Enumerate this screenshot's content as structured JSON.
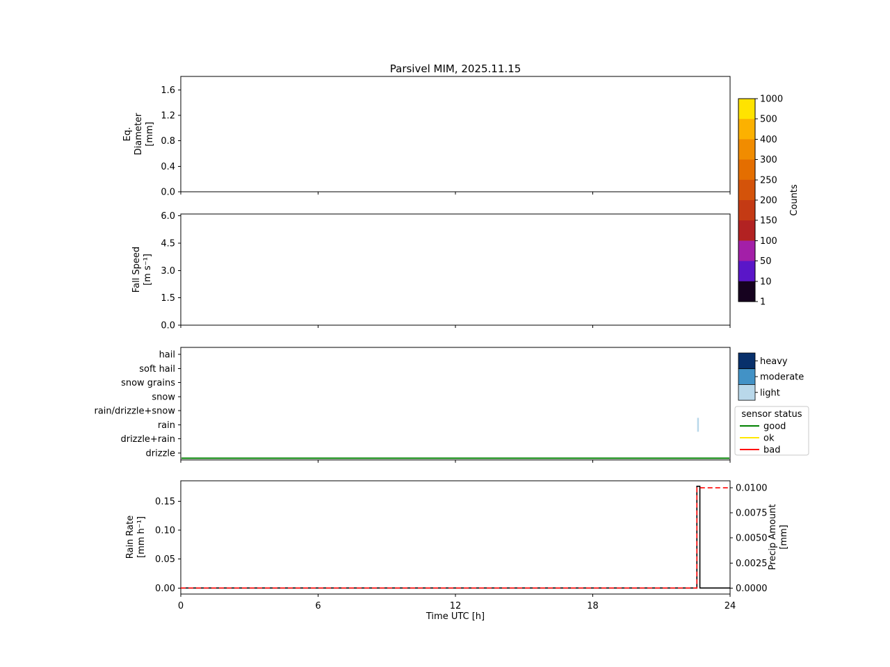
{
  "figure": {
    "title": "Parsivel MIM, 2025.11.15",
    "xlabel": "Time UTC [h]",
    "x_range": [
      0,
      24
    ],
    "x_ticks": [
      {
        "v": 0,
        "label": "0"
      },
      {
        "v": 6,
        "label": "6"
      },
      {
        "v": 12,
        "label": "12"
      },
      {
        "v": 18,
        "label": "18"
      },
      {
        "v": 24,
        "label": "24"
      }
    ]
  },
  "chart_data": [
    {
      "id": "eq_diameter",
      "type": "heatmap",
      "ylabel": "Eq.\nDiameter\n[mm]",
      "ylim": [
        0,
        1.81
      ],
      "yticks": [
        {
          "v": 0.0,
          "label": "0.0"
        },
        {
          "v": 0.4,
          "label": "0.4"
        },
        {
          "v": 0.8,
          "label": "0.8"
        },
        {
          "v": 1.2,
          "label": "1.2"
        },
        {
          "v": 1.6,
          "label": "1.6"
        }
      ],
      "values": []
    },
    {
      "id": "fall_speed",
      "type": "heatmap",
      "ylabel": "Fall Speed\n[m s⁻¹]",
      "ylim": [
        0,
        6.1
      ],
      "yticks": [
        {
          "v": 0.0,
          "label": "0.0"
        },
        {
          "v": 1.5,
          "label": "1.5"
        },
        {
          "v": 3.0,
          "label": "3.0"
        },
        {
          "v": 4.5,
          "label": "4.5"
        },
        {
          "v": 6.0,
          "label": "6.0"
        }
      ],
      "values": []
    },
    {
      "id": "precip_type",
      "type": "scatter",
      "categories": [
        "hail",
        "soft hail",
        "snow grains",
        "snow",
        "rain/drizzle+snow",
        "rain",
        "drizzle+rain",
        "drizzle"
      ],
      "events": [
        {
          "time_h": 22.6,
          "category": "rain",
          "intensity": "light"
        }
      ],
      "sensor_status_line": {
        "status": "good",
        "t0": 0,
        "t1": 24
      }
    },
    {
      "id": "rain",
      "type": "line",
      "left_axis": {
        "label": "Rain Rate\n[mm h⁻¹]",
        "ylim": [
          -0.0105,
          0.1855
        ],
        "yticks": [
          {
            "v": 0.0,
            "label": "0.00"
          },
          {
            "v": 0.05,
            "label": "0.05"
          },
          {
            "v": 0.1,
            "label": "0.10"
          },
          {
            "v": 0.15,
            "label": "0.15"
          }
        ]
      },
      "right_axis": {
        "label": "Precip Amount\n[mm]",
        "ylim": [
          -0.0006,
          0.0107
        ],
        "yticks": [
          {
            "v": 0.0,
            "label": "0.0000"
          },
          {
            "v": 0.0025,
            "label": "0.0025"
          },
          {
            "v": 0.005,
            "label": "0.0050"
          },
          {
            "v": 0.0075,
            "label": "0.0075"
          },
          {
            "v": 0.01,
            "label": "0.0100"
          }
        ]
      },
      "series": [
        {
          "name": "rain_rate",
          "axis": "left",
          "color": "#000000",
          "style": "solid",
          "points": [
            [
              0,
              0
            ],
            [
              22.55,
              0
            ],
            [
              22.55,
              0.176
            ],
            [
              22.68,
              0.176
            ],
            [
              22.68,
              0
            ],
            [
              24,
              0
            ]
          ]
        },
        {
          "name": "precip_amount",
          "axis": "right",
          "color": "#ff0000",
          "style": "dashed",
          "points": [
            [
              0,
              0
            ],
            [
              22.55,
              0
            ],
            [
              22.55,
              0.01
            ],
            [
              24,
              0.01
            ]
          ]
        }
      ]
    }
  ],
  "colorbar": {
    "label": "Counts",
    "ticks_top_to_bottom": [
      "1000",
      "500",
      "400",
      "300",
      "250",
      "200",
      "150",
      "100",
      "50",
      "10",
      "1"
    ],
    "segment_colors_top_to_bottom": [
      "#ffe300",
      "#fcb100",
      "#f18c00",
      "#e46e00",
      "#d4530a",
      "#c43a14",
      "#b22222",
      "#a31fa8",
      "#5a16c8",
      "#16021f"
    ]
  },
  "intensity_legend": {
    "items": [
      {
        "label": "heavy",
        "color": "#08306b"
      },
      {
        "label": "moderate",
        "color": "#4292c6"
      },
      {
        "label": "light",
        "color": "#b9d8ea"
      }
    ]
  },
  "sensor_legend": {
    "title": "sensor status",
    "items": [
      {
        "label": "good",
        "color": "#008000"
      },
      {
        "label": "ok",
        "color": "#ffe800"
      },
      {
        "label": "bad",
        "color": "#ff0000"
      }
    ]
  }
}
